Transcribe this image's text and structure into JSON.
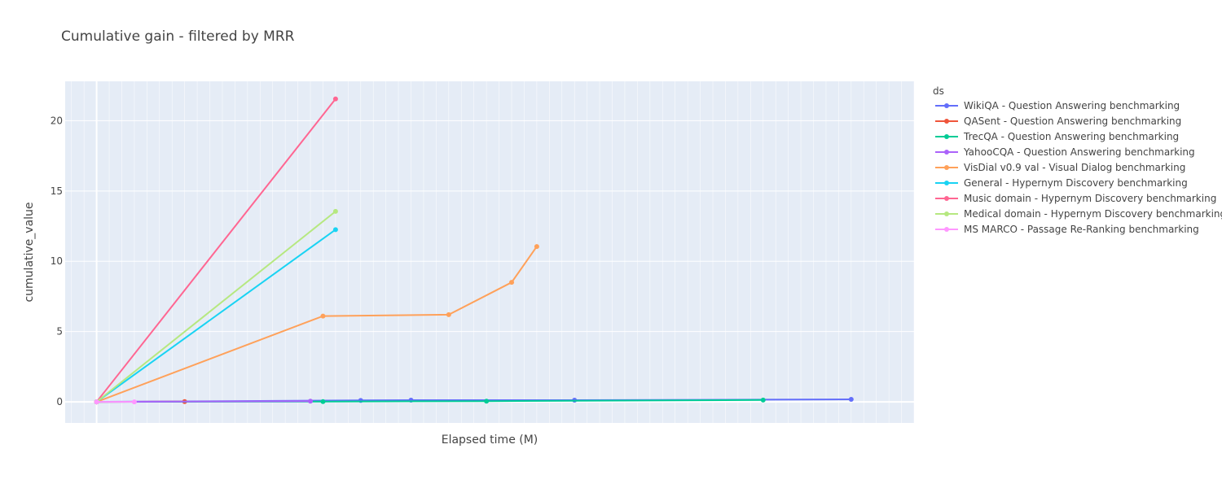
{
  "chart_data": {
    "type": "line",
    "title": "Cumulative gain - filtered by MRR",
    "xlabel": "Elapsed time (M)",
    "ylabel": "cumulative_value",
    "xlim": [
      -2.5,
      65
    ],
    "ylim": [
      -1.5,
      22.8
    ],
    "yticks": [
      0,
      5,
      10,
      15,
      20
    ],
    "x_minor_step": 1,
    "grid": true,
    "legend_title": "ds",
    "legend_position": "right",
    "plot_bg": "#e5ecf6",
    "series": [
      {
        "name": "WikiQA - Question Answering benchmarking",
        "color": "#636efa",
        "x": [
          0,
          21,
          25,
          38,
          60
        ],
        "y": [
          0,
          0.1,
          0.12,
          0.12,
          0.18
        ]
      },
      {
        "name": "QASent - Question Answering benchmarking",
        "color": "#ef553b",
        "x": [
          0,
          7
        ],
        "y": [
          0,
          0.02
        ]
      },
      {
        "name": "TrecQA - Question Answering benchmarking",
        "color": "#00cc96",
        "x": [
          0,
          18,
          31,
          53
        ],
        "y": [
          0,
          0.02,
          0.05,
          0.13
        ]
      },
      {
        "name": "YahooCQA - Question Answering benchmarking",
        "color": "#ab63fa",
        "x": [
          0,
          17
        ],
        "y": [
          0,
          0.05
        ]
      },
      {
        "name": "VisDial v0.9 val - Visual Dialog benchmarking",
        "color": "#ffa15a",
        "x": [
          0,
          18,
          28,
          33,
          35
        ],
        "y": [
          0,
          6.1,
          6.2,
          8.5,
          11.05
        ]
      },
      {
        "name": "General - Hypernym Discovery benchmarking",
        "color": "#19d3f3",
        "x": [
          0,
          19
        ],
        "y": [
          0,
          12.25
        ]
      },
      {
        "name": "Music domain - Hypernym Discovery benchmarking",
        "color": "#ff6692",
        "x": [
          0,
          19
        ],
        "y": [
          0,
          21.55
        ]
      },
      {
        "name": "Medical domain - Hypernym Discovery benchmarking",
        "color": "#b6e880",
        "x": [
          0,
          19
        ],
        "y": [
          0,
          13.55
        ]
      },
      {
        "name": "MS MARCO - Passage Re-Ranking benchmarking",
        "color": "#ff97ff",
        "x": [
          0,
          3
        ],
        "y": [
          0,
          0
        ]
      }
    ]
  }
}
